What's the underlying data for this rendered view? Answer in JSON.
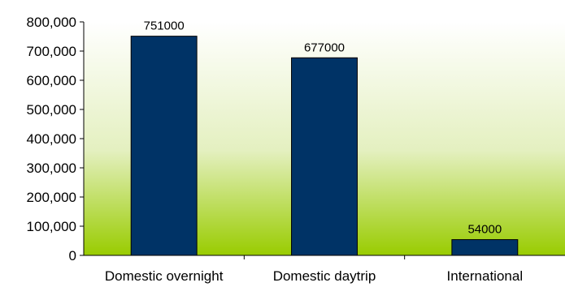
{
  "chart_data": {
    "type": "bar",
    "title": "",
    "xlabel": "",
    "ylabel": "",
    "categories": [
      "Domestic overnight",
      "Domestic daytrip",
      "International"
    ],
    "values": [
      751000,
      677000,
      54000
    ],
    "data_labels": [
      "751000",
      "677000",
      "54000"
    ],
    "ylim": [
      0,
      800000
    ],
    "yticks": [
      0,
      100000,
      200000,
      300000,
      400000,
      500000,
      600000,
      700000,
      800000
    ],
    "ytick_labels": [
      "0",
      "100,000",
      "200,000",
      "300,000",
      "400,000",
      "500,000",
      "600,000",
      "700,000",
      "800,000"
    ],
    "grid": false,
    "legend": "none",
    "colors": {
      "bar_fill": "#003366",
      "bar_stroke": "#000000",
      "plot_bg_top": "#ffffff",
      "plot_bg_bottom": "#99cc00",
      "axis": "#000000"
    }
  }
}
